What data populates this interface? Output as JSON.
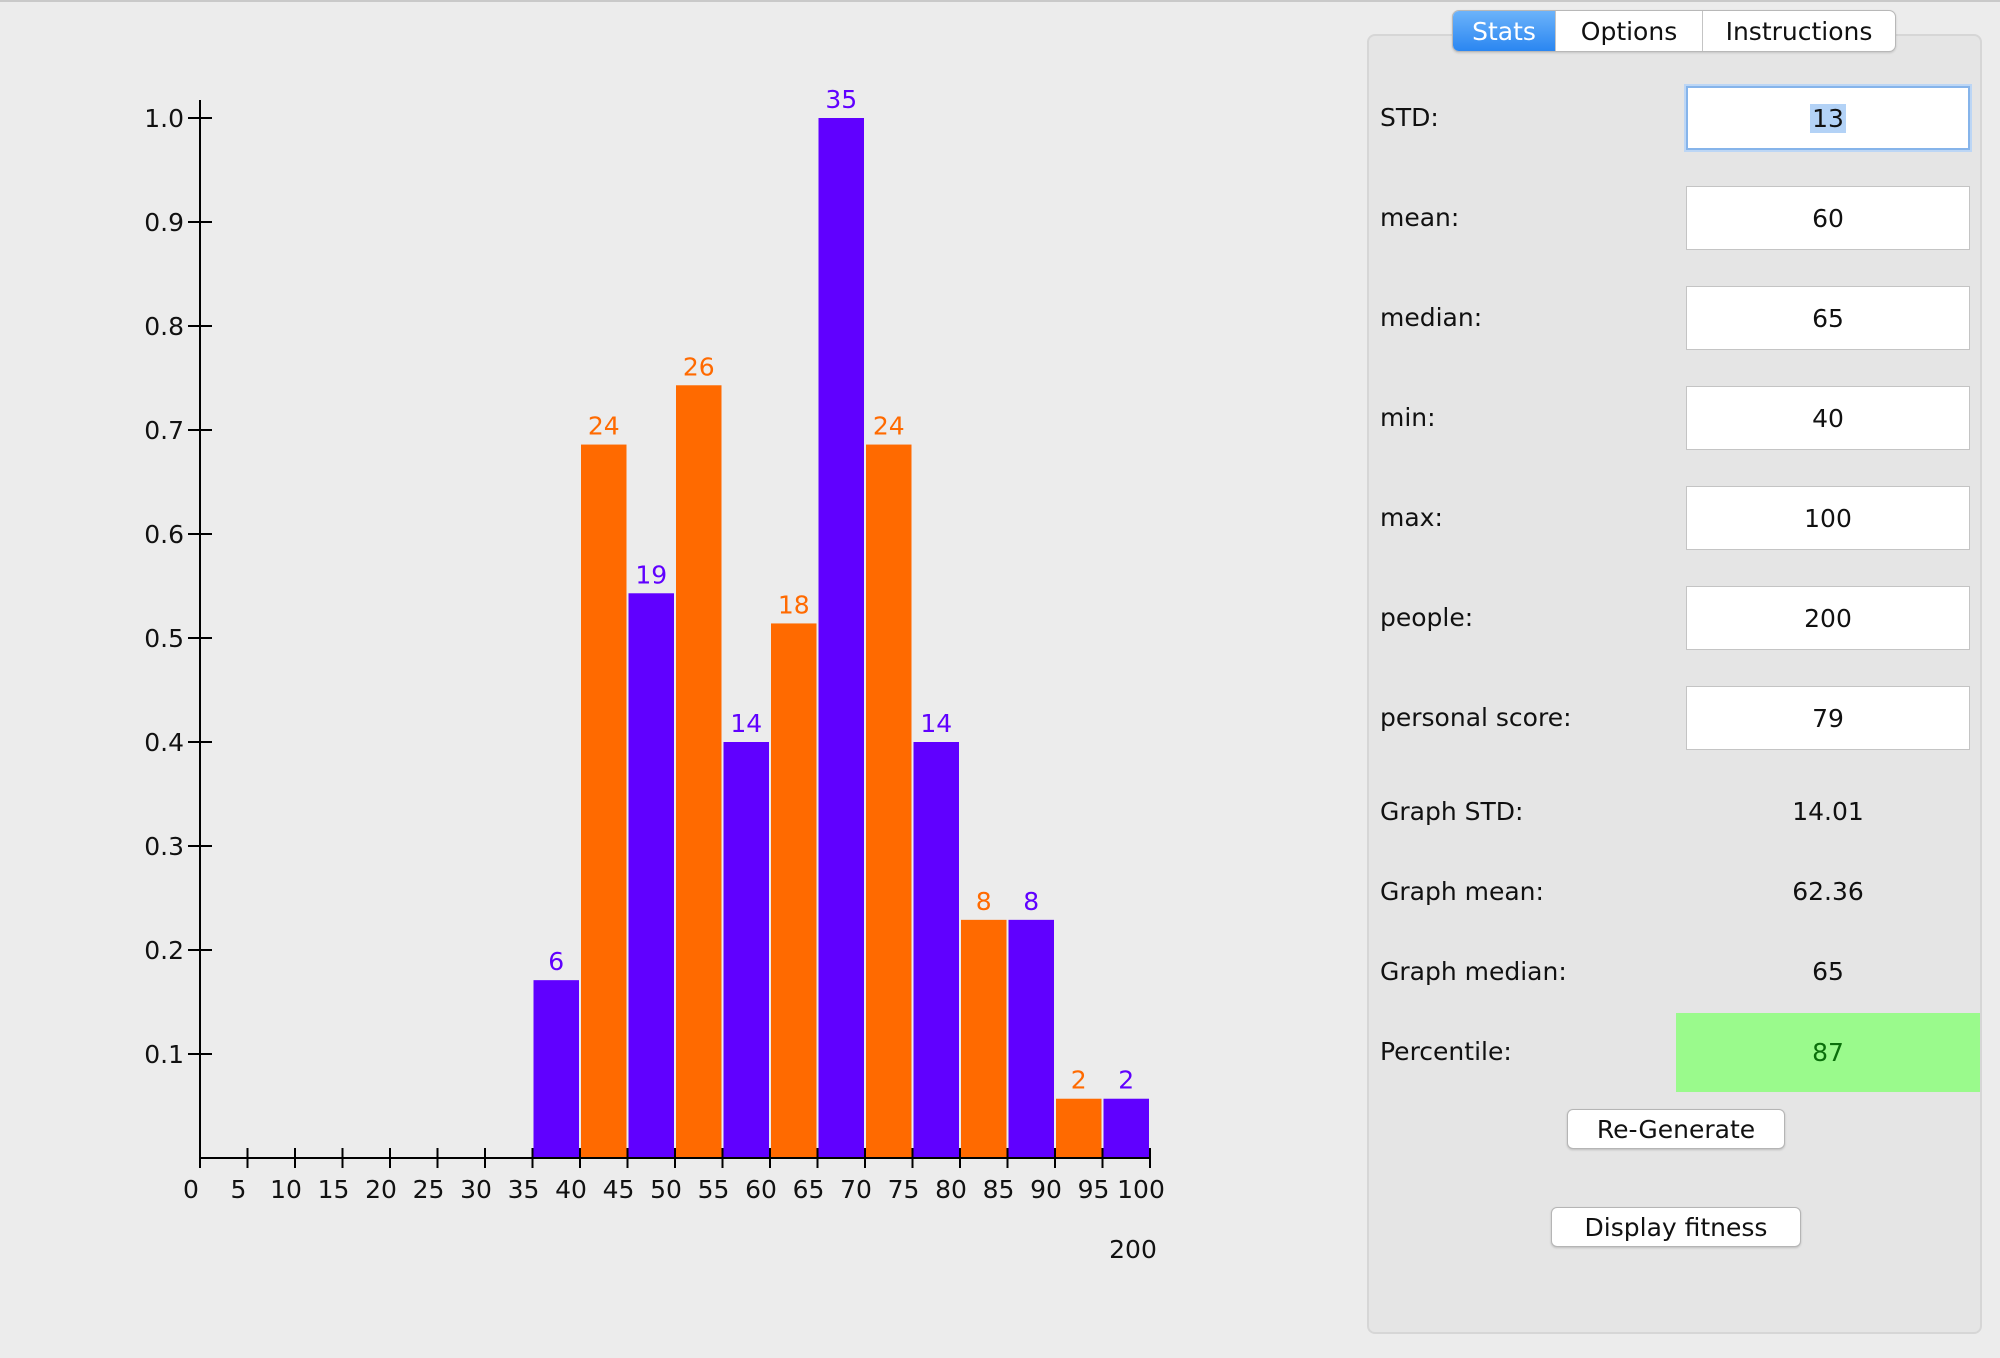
{
  "tabs": [
    {
      "label": "Stats",
      "active": true
    },
    {
      "label": "Options",
      "active": false
    },
    {
      "label": "Instructions",
      "active": false
    }
  ],
  "fields": {
    "std": {
      "label": "STD:",
      "value": "13"
    },
    "mean": {
      "label": "mean:",
      "value": "60"
    },
    "median": {
      "label": "median:",
      "value": "65"
    },
    "min": {
      "label": "min:",
      "value": "40"
    },
    "max": {
      "label": "max:",
      "value": "100"
    },
    "people": {
      "label": "people:",
      "value": "200"
    },
    "personal_score": {
      "label": "personal score:",
      "value": "79"
    }
  },
  "graph_stats": {
    "std": {
      "label": "Graph STD:",
      "value": "14.01"
    },
    "mean": {
      "label": "Graph mean:",
      "value": "62.36"
    },
    "median": {
      "label": "Graph median:",
      "value": "65"
    },
    "percentile": {
      "label": "Percentile:",
      "value": "87"
    }
  },
  "buttons": {
    "regenerate": "Re-Generate",
    "display_fitness": "Display fitness"
  },
  "colors": {
    "purple": "#6000ff",
    "orange": "#ff6a00",
    "percentile_bg": "#9afa8c",
    "tab_active": "#2a86f1"
  },
  "chart_data": {
    "type": "bar",
    "x_ticks": [
      "0",
      "5",
      "10",
      "15",
      "20",
      "25",
      "30",
      "35",
      "40",
      "45",
      "50",
      "55",
      "60",
      "65",
      "70",
      "75",
      "80",
      "85",
      "90",
      "95",
      "100"
    ],
    "y_ticks": [
      "0.1",
      "0.2",
      "0.3",
      "0.4",
      "0.5",
      "0.6",
      "0.7",
      "0.8",
      "0.9",
      "1.0"
    ],
    "ylim": [
      0,
      1.0
    ],
    "xlim": [
      0,
      100
    ],
    "footer_label": "200",
    "bars": [
      {
        "x0": 35,
        "x1": 40,
        "count": 6,
        "height": 0.171,
        "color": "purple"
      },
      {
        "x0": 40,
        "x1": 45,
        "count": 24,
        "height": 0.686,
        "color": "orange"
      },
      {
        "x0": 45,
        "x1": 50,
        "count": 19,
        "height": 0.543,
        "color": "purple"
      },
      {
        "x0": 50,
        "x1": 55,
        "count": 26,
        "height": 0.743,
        "color": "orange"
      },
      {
        "x0": 55,
        "x1": 60,
        "count": 14,
        "height": 0.4,
        "color": "purple"
      },
      {
        "x0": 60,
        "x1": 65,
        "count": 18,
        "height": 0.514,
        "color": "orange"
      },
      {
        "x0": 65,
        "x1": 70,
        "count": 35,
        "height": 1.0,
        "color": "purple"
      },
      {
        "x0": 70,
        "x1": 75,
        "count": 24,
        "height": 0.686,
        "color": "orange"
      },
      {
        "x0": 75,
        "x1": 80,
        "count": 14,
        "height": 0.4,
        "color": "purple"
      },
      {
        "x0": 80,
        "x1": 85,
        "count": 8,
        "height": 0.229,
        "color": "orange"
      },
      {
        "x0": 85,
        "x1": 90,
        "count": 8,
        "height": 0.229,
        "color": "purple"
      },
      {
        "x0": 90,
        "x1": 95,
        "count": 2,
        "height": 0.057,
        "color": "orange"
      },
      {
        "x0": 95,
        "x1": 100,
        "count": 2,
        "height": 0.057,
        "color": "purple"
      }
    ]
  }
}
